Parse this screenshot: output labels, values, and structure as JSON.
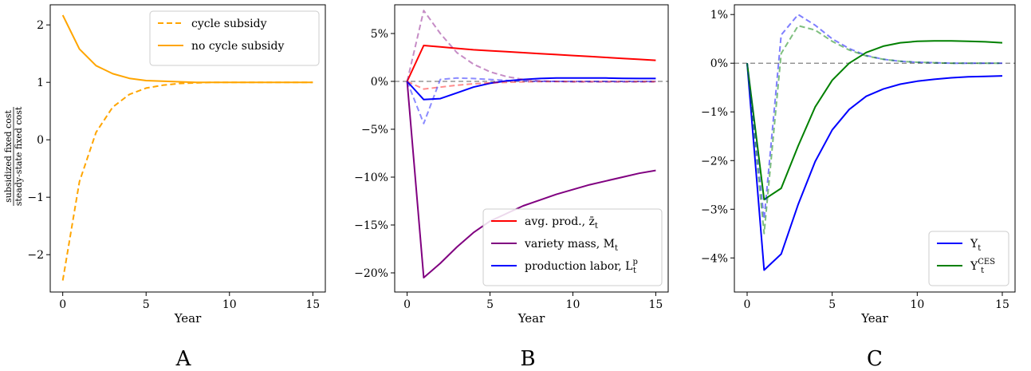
{
  "chart_data": [
    {
      "type": "line",
      "panel_label": "A",
      "xlabel": "Year",
      "ylabel_numerator": "subsidized fixed cost",
      "ylabel_denominator": "steady-state fixed cost",
      "xlim": [
        -0.75,
        15.75
      ],
      "ylim": [
        -2.65,
        2.35
      ],
      "xticks": [
        0,
        5,
        10,
        15
      ],
      "yticks": [
        -2,
        -1,
        0,
        1,
        2
      ],
      "ytick_labels": [
        "−2",
        "−1",
        "0",
        "1",
        "2"
      ],
      "legend_position": "top-right",
      "x": [
        0,
        1,
        2,
        3,
        4,
        5,
        6,
        7,
        8,
        9,
        10,
        11,
        12,
        13,
        14,
        15
      ],
      "series": [
        {
          "name": "cycle subsidy",
          "color": "#FFA500",
          "style": "dashed",
          "values": [
            -2.45,
            -0.73,
            0.13,
            0.57,
            0.79,
            0.9,
            0.95,
            0.98,
            0.99,
            1.0,
            1.0,
            1.0,
            1.0,
            1.0,
            1.0,
            1.0
          ]
        },
        {
          "name": "no cycle subsidy",
          "color": "#FFA500",
          "style": "solid",
          "values": [
            2.17,
            1.58,
            1.29,
            1.15,
            1.07,
            1.03,
            1.02,
            1.01,
            1.0,
            1.0,
            1.0,
            1.0,
            1.0,
            1.0,
            1.0,
            1.0
          ]
        }
      ]
    },
    {
      "type": "line",
      "panel_label": "B",
      "xlabel": "Year",
      "xlim": [
        -0.75,
        15.75
      ],
      "ylim": [
        -22,
        8
      ],
      "xticks": [
        0,
        5,
        10,
        15
      ],
      "yticks": [
        5,
        0,
        -5,
        -10,
        -15,
        -20
      ],
      "ytick_labels": [
        "5%",
        "0%",
        "−5%",
        "−10%",
        "−15%",
        "−20%"
      ],
      "zero_line": true,
      "legend_position": "bottom-right",
      "x": [
        0,
        1,
        2,
        3,
        4,
        5,
        6,
        7,
        8,
        9,
        10,
        11,
        12,
        13,
        14,
        15
      ],
      "series": [
        {
          "name": "avg. prod., z̄",
          "sub": "t",
          "color": "#FF0000",
          "style": "solid",
          "values": [
            0,
            3.75,
            3.6,
            3.45,
            3.3,
            3.2,
            3.1,
            3.0,
            2.9,
            2.8,
            2.7,
            2.6,
            2.5,
            2.4,
            2.3,
            2.2
          ]
        },
        {
          "name": "variety mass, M",
          "sub": "t",
          "color": "#800080",
          "style": "solid",
          "values": [
            0,
            -20.5,
            -19.0,
            -17.3,
            -15.8,
            -14.6,
            -13.8,
            -13.0,
            -12.4,
            -11.8,
            -11.3,
            -10.8,
            -10.4,
            -10.0,
            -9.6,
            -9.3
          ]
        },
        {
          "name": "production labor, L",
          "sub": "t",
          "sup": "p",
          "color": "#0000FF",
          "style": "solid",
          "values": [
            0,
            -1.9,
            -1.8,
            -1.2,
            -0.6,
            -0.2,
            0.05,
            0.2,
            0.3,
            0.35,
            0.35,
            0.35,
            0.35,
            0.32,
            0.3,
            0.3
          ]
        },
        {
          "color": "#FF0000",
          "style": "dashed",
          "alpha": 0.45,
          "values": [
            0,
            -0.8,
            -0.6,
            -0.4,
            -0.25,
            -0.15,
            -0.1,
            -0.05,
            -0.02,
            -0.02,
            -0.02,
            -0.02,
            -0.02,
            -0.02,
            -0.02,
            -0.02
          ]
        },
        {
          "color": "#800080",
          "style": "dashed",
          "alpha": 0.45,
          "values": [
            0,
            7.4,
            5.0,
            3.0,
            1.8,
            1.0,
            0.5,
            0.2,
            0.05,
            0.0,
            -0.05,
            -0.05,
            -0.05,
            -0.05,
            -0.05,
            -0.05
          ]
        },
        {
          "color": "#0000FF",
          "style": "dashed",
          "alpha": 0.45,
          "values": [
            0,
            -4.4,
            0.2,
            0.35,
            0.3,
            0.2,
            0.1,
            0.05,
            0.0,
            0.0,
            0.0,
            0.0,
            0.0,
            0.0,
            0.0,
            0.0
          ]
        }
      ]
    },
    {
      "type": "line",
      "panel_label": "C",
      "xlabel": "Year",
      "xlim": [
        -0.75,
        15.75
      ],
      "ylim": [
        -4.7,
        1.2
      ],
      "xticks": [
        0,
        5,
        10,
        15
      ],
      "yticks": [
        1,
        0,
        -1,
        -2,
        -3,
        -4
      ],
      "ytick_labels": [
        "1%",
        "0%",
        "−1%",
        "−2%",
        "−3%",
        "−4%"
      ],
      "zero_line": true,
      "legend_position": "bottom-right",
      "x": [
        0,
        1,
        2,
        3,
        4,
        5,
        6,
        7,
        8,
        9,
        10,
        11,
        12,
        13,
        14,
        15
      ],
      "series": [
        {
          "name": "Y",
          "sub": "t",
          "color": "#0000FF",
          "style": "solid",
          "values": [
            0,
            -4.25,
            -3.92,
            -2.9,
            -2.02,
            -1.37,
            -0.95,
            -0.68,
            -0.53,
            -0.43,
            -0.37,
            -0.33,
            -0.3,
            -0.28,
            -0.27,
            -0.26
          ]
        },
        {
          "name": "Y",
          "sub": "t",
          "sup": "CES",
          "color": "#008000",
          "style": "solid",
          "values": [
            0,
            -2.8,
            -2.57,
            -1.7,
            -0.9,
            -0.35,
            0.0,
            0.22,
            0.35,
            0.42,
            0.45,
            0.46,
            0.46,
            0.45,
            0.44,
            0.42
          ]
        },
        {
          "color": "#0000FF",
          "style": "dashed",
          "alpha": 0.5,
          "values": [
            0,
            -3.2,
            0.58,
            1.0,
            0.78,
            0.5,
            0.3,
            0.16,
            0.08,
            0.04,
            0.02,
            0.01,
            0.0,
            0.0,
            0.0,
            0.0
          ]
        },
        {
          "color": "#008000",
          "style": "dashed",
          "alpha": 0.5,
          "values": [
            0,
            -3.5,
            0.2,
            0.77,
            0.68,
            0.45,
            0.27,
            0.15,
            0.08,
            0.04,
            0.02,
            0.01,
            0.0,
            0.0,
            0.0,
            0.0
          ]
        }
      ]
    }
  ]
}
